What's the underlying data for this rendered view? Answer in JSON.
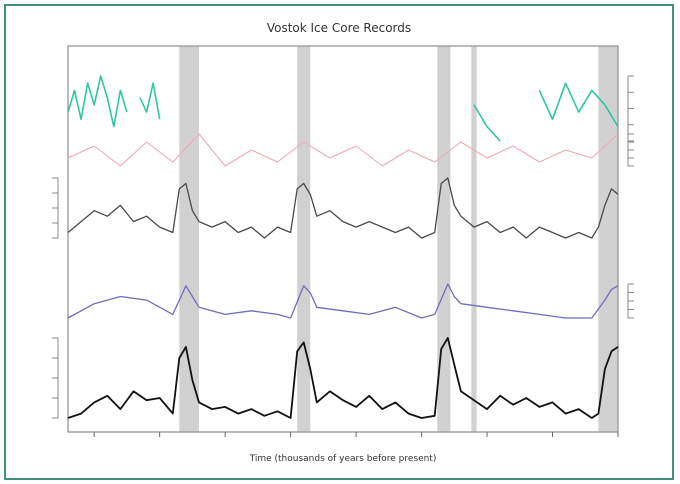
{
  "chart_data": {
    "type": "line",
    "title": "Vostok Ice Core Records",
    "xlabel": "Time (thousands of years before present)",
    "x_range": [
      420,
      0
    ],
    "x_ticks": [
      400,
      350,
      300,
      250,
      200,
      150,
      100,
      50,
      0
    ],
    "tick_labels_visible": false,
    "grid": false,
    "shaded_periods": [
      [
        335,
        320
      ],
      [
        245,
        235
      ],
      [
        138,
        128
      ],
      [
        112,
        108
      ],
      [
        15,
        0
      ]
    ],
    "colors": {
      "frame": "#3f8f7a",
      "dust": "#2ec7a4",
      "insolation": "#f0aab0",
      "temperature": "#4a4a4a",
      "co2": "#6e6ebd",
      "methane": "#111111",
      "shade": "#9a9a9a"
    },
    "series": [
      {
        "axis_side": "right",
        "x": [
          420,
          415,
          410,
          405,
          400,
          395,
          390,
          385,
          380,
          375,
          370,
          365,
          360,
          355,
          350,
          340,
          330,
          320,
          310,
          300,
          290,
          280,
          270,
          260,
          250,
          240,
          230,
          220,
          210,
          200,
          190,
          180,
          170,
          160,
          150,
          140,
          130,
          120,
          110,
          100,
          90,
          80,
          70,
          60,
          50,
          40,
          30,
          20,
          10,
          0
        ],
        "values": [
          0.5,
          0.8,
          0.4,
          0.9,
          0.6,
          1.0,
          0.7,
          0.3,
          0.8,
          0.5,
          null,
          0.7,
          0.5,
          0.9,
          0.4,
          null,
          null,
          null,
          null,
          null,
          null,
          null,
          null,
          null,
          null,
          null,
          null,
          null,
          null,
          null,
          null,
          null,
          null,
          null,
          null,
          null,
          null,
          null,
          0.6,
          0.3,
          0.1,
          null,
          null,
          0.8,
          0.4,
          0.9,
          0.5,
          0.8,
          0.6,
          0.3
        ]
      },
      {
        "axis_side": "right",
        "x": [
          420,
          400,
          380,
          360,
          340,
          320,
          300,
          280,
          260,
          240,
          220,
          200,
          180,
          160,
          140,
          120,
          100,
          80,
          60,
          40,
          20,
          0
        ],
        "values": [
          440,
          470,
          420,
          480,
          430,
          500,
          420,
          460,
          430,
          480,
          440,
          470,
          420,
          460,
          430,
          480,
          440,
          470,
          430,
          460,
          440,
          500
        ]
      },
      {
        "axis_side": "left",
        "x": [
          420,
          410,
          400,
          390,
          380,
          370,
          360,
          350,
          340,
          335,
          330,
          325,
          320,
          310,
          300,
          290,
          280,
          270,
          260,
          250,
          245,
          240,
          235,
          230,
          220,
          210,
          200,
          190,
          180,
          170,
          160,
          150,
          140,
          135,
          130,
          125,
          120,
          110,
          100,
          90,
          80,
          70,
          60,
          50,
          40,
          30,
          20,
          15,
          10,
          5,
          0
        ],
        "values": [
          -7,
          -5,
          -3,
          -4,
          -2,
          -5,
          -4,
          -6,
          -7,
          1,
          2,
          -3,
          -5,
          -6,
          -5,
          -7,
          -6,
          -8,
          -6,
          -7,
          1,
          2,
          0,
          -4,
          -3,
          -5,
          -6,
          -5,
          -6,
          -7,
          -6,
          -8,
          -7,
          2,
          3,
          -2,
          -4,
          -6,
          -5,
          -7,
          -6,
          -8,
          -6,
          -7,
          -8,
          -7,
          -8,
          -6,
          -2,
          1,
          0
        ]
      },
      {
        "axis_side": "right",
        "x": [
          420,
          400,
          380,
          360,
          340,
          330,
          325,
          320,
          300,
          280,
          260,
          250,
          240,
          235,
          230,
          210,
          190,
          170,
          150,
          140,
          130,
          125,
          120,
          100,
          80,
          60,
          40,
          20,
          10,
          5,
          0
        ],
        "values": [
          190,
          230,
          250,
          240,
          200,
          280,
          250,
          220,
          200,
          210,
          200,
          190,
          280,
          260,
          220,
          210,
          200,
          220,
          190,
          200,
          285,
          250,
          230,
          220,
          210,
          200,
          190,
          190,
          240,
          270,
          280
        ]
      },
      {
        "axis_side": "left",
        "x": [
          420,
          410,
          400,
          390,
          380,
          370,
          360,
          350,
          340,
          335,
          330,
          325,
          320,
          310,
          300,
          290,
          280,
          270,
          260,
          250,
          245,
          240,
          235,
          230,
          220,
          210,
          200,
          190,
          180,
          170,
          160,
          150,
          140,
          135,
          130,
          125,
          120,
          110,
          100,
          90,
          80,
          70,
          60,
          50,
          40,
          30,
          20,
          15,
          10,
          5,
          0
        ],
        "values": [
          380,
          400,
          450,
          480,
          420,
          500,
          460,
          470,
          400,
          650,
          700,
          550,
          450,
          420,
          430,
          400,
          420,
          390,
          410,
          380,
          680,
          720,
          600,
          450,
          500,
          460,
          430,
          480,
          420,
          450,
          400,
          380,
          390,
          690,
          740,
          620,
          500,
          460,
          420,
          480,
          440,
          470,
          430,
          450,
          400,
          420,
          380,
          400,
          600,
          680,
          700
        ]
      }
    ]
  }
}
